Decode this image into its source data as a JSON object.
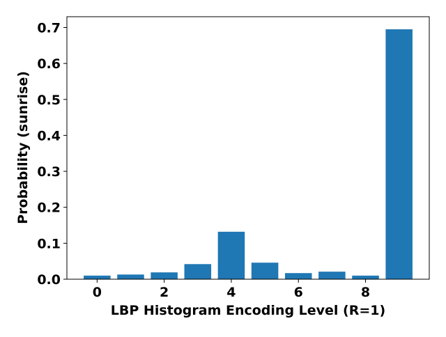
{
  "chart_data": {
    "type": "bar",
    "title": "",
    "xlabel": "LBP Histogram Encoding Level (R=1)",
    "ylabel": "Probability (sunrise)",
    "categories": [
      0,
      1,
      2,
      3,
      4,
      5,
      6,
      7,
      8,
      9
    ],
    "values": [
      0.01,
      0.013,
      0.019,
      0.042,
      0.132,
      0.046,
      0.017,
      0.021,
      0.01,
      0.695
    ],
    "xlim": [
      -0.9,
      9.9
    ],
    "ylim": [
      0,
      0.73
    ],
    "xticks": [
      0,
      2,
      4,
      6,
      8
    ],
    "yticks": [
      0.0,
      0.1,
      0.2,
      0.3,
      0.4,
      0.5,
      0.6,
      0.7
    ],
    "xtick_labels": [
      "0",
      "2",
      "4",
      "6",
      "8"
    ],
    "ytick_labels": [
      "0.0",
      "0.1",
      "0.2",
      "0.3",
      "0.4",
      "0.5",
      "0.6",
      "0.7"
    ],
    "bar_color": "#1f77b4",
    "grid": false,
    "legend": "none"
  }
}
